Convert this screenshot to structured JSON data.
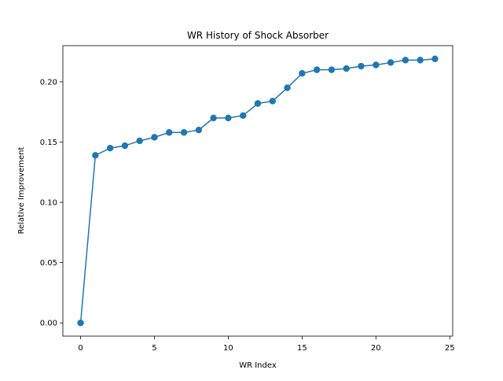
{
  "chart_data": {
    "type": "line",
    "title": "WR History of Shock Absorber",
    "xlabel": "WR Index",
    "ylabel": "Relative Improvement",
    "xlim": [
      -1.2,
      25.2
    ],
    "ylim": [
      -0.011,
      0.23
    ],
    "xticks": [
      0,
      5,
      10,
      15,
      20,
      25
    ],
    "xtick_labels": [
      "0",
      "5",
      "10",
      "15",
      "20",
      "25"
    ],
    "yticks": [
      0.0,
      0.05,
      0.1,
      0.15,
      0.2
    ],
    "ytick_labels": [
      "0.00",
      "0.05",
      "0.10",
      "0.15",
      "0.20"
    ],
    "grid": false,
    "legend": "none",
    "series": [
      {
        "color": "#1f77b4",
        "marker": "circle",
        "x": [
          0,
          1,
          2,
          3,
          4,
          5,
          6,
          7,
          8,
          9,
          10,
          11,
          12,
          13,
          14,
          15,
          16,
          17,
          18,
          19,
          20,
          21,
          22,
          23,
          24
        ],
        "y": [
          0.0,
          0.139,
          0.145,
          0.147,
          0.151,
          0.154,
          0.158,
          0.158,
          0.16,
          0.17,
          0.17,
          0.172,
          0.182,
          0.184,
          0.195,
          0.207,
          0.21,
          0.21,
          0.211,
          0.213,
          0.214,
          0.216,
          0.218,
          0.218,
          0.219
        ]
      }
    ]
  }
}
